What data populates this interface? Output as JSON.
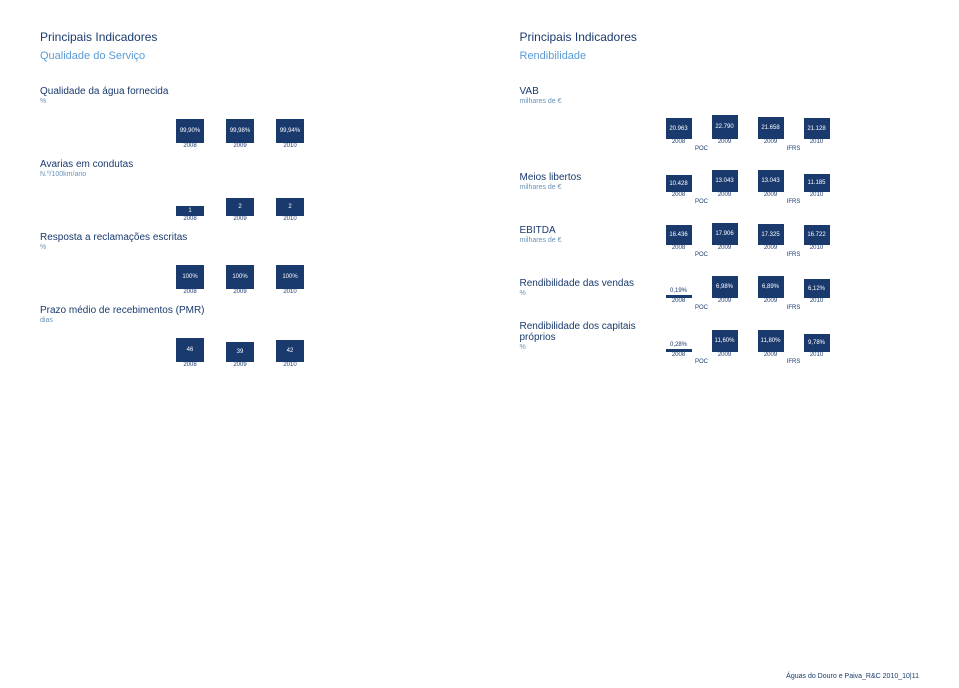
{
  "left": {
    "title": "Principais Indicadores",
    "subtitle": "Qualidade do Serviço",
    "chart1": {
      "label": "Qualidade da água fornecida",
      "unit": "%",
      "years": [
        "2008",
        "2009",
        "2010"
      ],
      "values": [
        "99,90%",
        "99,98%",
        "99,94%"
      ],
      "heights": [
        24,
        24,
        24
      ],
      "color": "#1a3a6e"
    },
    "chart2": {
      "label": "Avarias em condutas",
      "unit": "N.º/100km/ano",
      "years": [
        "2008",
        "2009",
        "2010"
      ],
      "values": [
        "1",
        "2",
        "2"
      ],
      "heights": [
        10,
        18,
        18
      ],
      "color": "#1a3a6e"
    },
    "chart3": {
      "label": "Resposta a reclamações escritas",
      "unit": "%",
      "years": [
        "2008",
        "2009",
        "2010"
      ],
      "values": [
        "100%",
        "100%",
        "100%"
      ],
      "heights": [
        24,
        24,
        24
      ],
      "color": "#1a3a6e"
    },
    "chart4": {
      "label": "Prazo médio de recebimentos (PMR)",
      "unit": "dias",
      "years": [
        "2008",
        "2009",
        "2010"
      ],
      "values": [
        "46",
        "39",
        "42"
      ],
      "heights": [
        24,
        20,
        22
      ],
      "color": "#1a3a6e"
    }
  },
  "right": {
    "title": "Principais Indicadores",
    "subtitle": "Rendibilidade",
    "chart1": {
      "label": "VAB",
      "unit": "milhares de €",
      "years": [
        "2008",
        "2009",
        "2009",
        "2010"
      ],
      "methods": [
        "POC",
        "IFRS"
      ],
      "values": [
        "20.963",
        "22.790",
        "21.658",
        "21.128"
      ],
      "heights": [
        21,
        24,
        22,
        21
      ],
      "color": "#1a3a6e"
    },
    "chart2": {
      "label": "Meios libertos",
      "unit": "milhares de €",
      "years": [
        "2008",
        "2009",
        "2009",
        "2010"
      ],
      "methods": [
        "POC",
        "IFRS"
      ],
      "values": [
        "10.428",
        "13.043",
        "13.043",
        "11.185"
      ],
      "heights": [
        17,
        22,
        22,
        18
      ],
      "color": "#1a3a6e"
    },
    "chart3": {
      "label": "EBITDA",
      "unit": "milhares de €",
      "years": [
        "2008",
        "2009",
        "2009",
        "2010"
      ],
      "methods": [
        "POC",
        "IFRS"
      ],
      "values": [
        "16.436",
        "17.906",
        "17.325",
        "16.722"
      ],
      "heights": [
        20,
        22,
        21,
        20
      ],
      "color": "#1a3a6e"
    },
    "chart4": {
      "label": "Rendibilidade das vendas",
      "unit": "%",
      "years": [
        "2008",
        "2009",
        "2009",
        "2010"
      ],
      "methods": [
        "POC",
        "IFRS"
      ],
      "values": [
        "0,19%",
        "6,98%",
        "6,89%",
        "6,12%"
      ],
      "heights": [
        3,
        22,
        22,
        19
      ],
      "color": "#1a3a6e",
      "val_above": [
        true,
        false,
        false,
        false
      ]
    },
    "chart5": {
      "label": "Rendibilidade dos capitais próprios",
      "unit": "%",
      "years": [
        "2008",
        "2009",
        "2009",
        "2010"
      ],
      "methods": [
        "POC",
        "IFRS"
      ],
      "values": [
        "0,28%",
        "11,60%",
        "11,80%",
        "9,78%"
      ],
      "heights": [
        3,
        22,
        22,
        18
      ],
      "color": "#1a3a6e",
      "val_above": [
        true,
        false,
        false,
        false
      ]
    }
  },
  "footer": "Águas do Douro e Paiva_R&C 2010_10|11"
}
